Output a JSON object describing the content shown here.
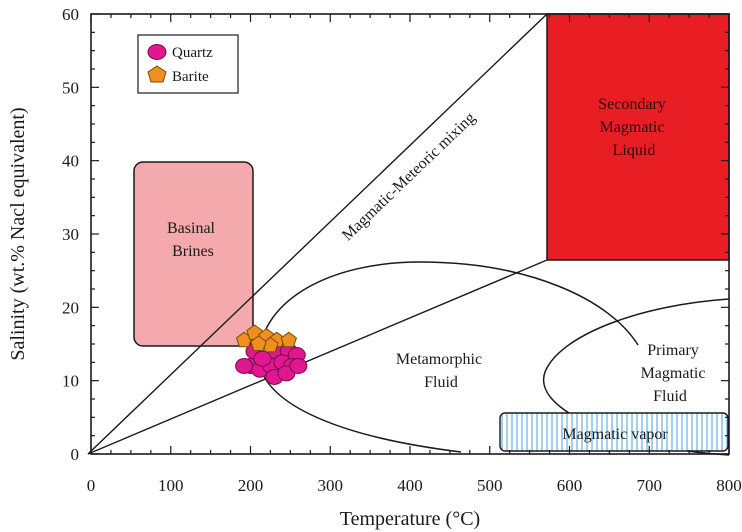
{
  "chart_data": {
    "type": "scatter",
    "xlabel": "Temperature (°C)",
    "ylabel": "Salinity (wt.% Nacl equivalent)",
    "xlim": [
      0,
      800
    ],
    "ylim": [
      0,
      60
    ],
    "x_ticks": [
      0,
      100,
      200,
      300,
      400,
      500,
      600,
      700,
      800
    ],
    "y_ticks": [
      0,
      10,
      20,
      30,
      40,
      50,
      60
    ],
    "grid": false,
    "legend": {
      "placement": "top-left",
      "entries": [
        {
          "label": "Quartz",
          "marker": "circle",
          "color": "#e0178e"
        },
        {
          "label": "Barite",
          "marker": "pentagon",
          "color": "#f0901c"
        }
      ]
    },
    "series": [
      {
        "name": "Quartz",
        "color": "#e0178e",
        "points": [
          [
            205,
            14
          ],
          [
            218,
            13
          ],
          [
            232,
            14
          ],
          [
            248,
            14
          ],
          [
            258,
            13.5
          ],
          [
            200,
            12
          ],
          [
            212,
            11.5
          ],
          [
            226,
            12
          ],
          [
            240,
            12.5
          ],
          [
            252,
            12
          ],
          [
            192,
            12
          ],
          [
            230,
            10.5
          ],
          [
            245,
            11
          ],
          [
            260,
            12
          ],
          [
            215,
            13
          ]
        ]
      },
      {
        "name": "Barite",
        "color": "#f0901c",
        "points": [
          [
            192,
            15.5
          ],
          [
            205,
            16.5
          ],
          [
            220,
            16
          ],
          [
            233,
            15.5
          ],
          [
            248,
            15.5
          ],
          [
            225,
            14.8
          ],
          [
            210,
            15
          ]
        ]
      }
    ],
    "regions": [
      {
        "label": "Basinal Brines",
        "lines": [
          "Basinal",
          "Brines"
        ],
        "color": "#f4a9ac"
      },
      {
        "label": "Secondary Magmatic Liquid",
        "lines": [
          "Secondary",
          "Magmatic",
          "Liquid"
        ],
        "color": "#e81e24"
      },
      {
        "label": "Metamorphic Fluid",
        "lines": [
          "Metamorphic",
          "Fluid"
        ]
      },
      {
        "label": "Primary Magmatic Fluid",
        "lines": [
          "Primary",
          "Magmatic",
          "Fluid"
        ]
      },
      {
        "label": "Magmatic vapor",
        "lines": [
          "Magmatic vapor"
        ],
        "color": "#aed6ee"
      }
    ],
    "annotations": [
      {
        "text": "Magmatic-Meteoric mixing"
      }
    ]
  }
}
